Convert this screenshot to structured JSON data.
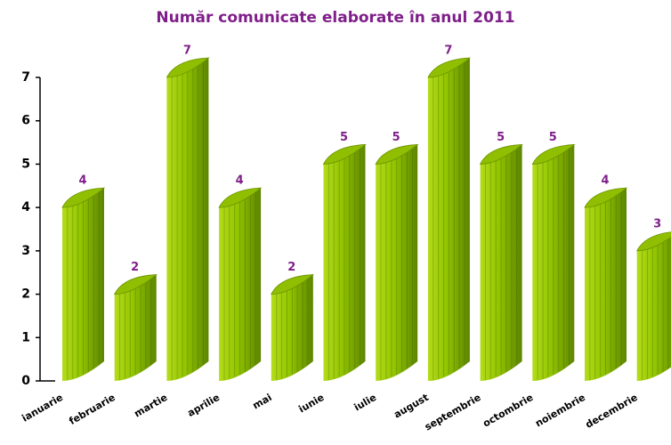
{
  "chart_data": {
    "type": "bar",
    "title": "Număr comunicate elaborate în anul 2011",
    "categories": [
      "ianuarie",
      "februarie",
      "martie",
      "aprilie",
      "mai",
      "iunie",
      "iulie",
      "august",
      "septembrie",
      "octombrie",
      "noiembrie",
      "decembrie"
    ],
    "values": [
      4,
      2,
      7,
      4,
      2,
      5,
      5,
      7,
      5,
      5,
      4,
      3
    ],
    "color": "#8fbf00",
    "ylim": [
      0,
      7
    ],
    "yticks": [
      0,
      1,
      2,
      3,
      4,
      5,
      6,
      7
    ],
    "grid": false
  }
}
